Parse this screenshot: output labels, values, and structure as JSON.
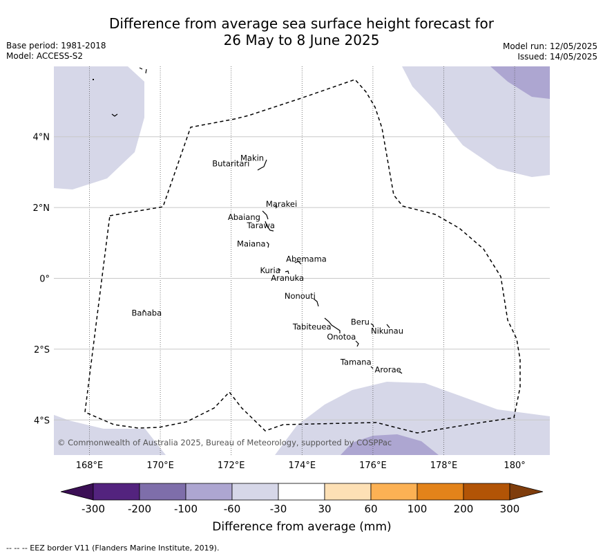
{
  "title": {
    "line1": "Difference from average sea surface height forecast for",
    "line2": "26 May to 8 June 2025"
  },
  "meta_left": {
    "base_period": "Base period: 1981-2018",
    "model": "Model: ACCESS-S2"
  },
  "meta_right": {
    "model_run": "Model run: 12/05/2025",
    "issued": "Issued: 14/05/2025"
  },
  "map": {
    "lon_range": [
      167,
      181
    ],
    "lat_range": [
      -5,
      6
    ],
    "lon_ticks": [
      {
        "value": 168,
        "label": "168°E"
      },
      {
        "value": 170,
        "label": "170°E"
      },
      {
        "value": 172,
        "label": "172°E"
      },
      {
        "value": 174,
        "label": "174°E"
      },
      {
        "value": 176,
        "label": "176°E"
      },
      {
        "value": 178,
        "label": "178°E"
      },
      {
        "value": 180,
        "label": "180°"
      }
    ],
    "lat_ticks": [
      {
        "value": 4,
        "label": "4°N"
      },
      {
        "value": 2,
        "label": "2°N"
      },
      {
        "value": 0,
        "label": "0°"
      },
      {
        "value": -2,
        "label": "2°S"
      },
      {
        "value": -4,
        "label": "4°S"
      }
    ],
    "copyright": "© Commonwealth of Australia 2025, Bureau of Meteorology, supported by COSPPac",
    "islands": [
      {
        "name": "Makin",
        "lon": 172.98,
        "lat": 3.28
      },
      {
        "name": "Butaritari",
        "lon": 172.79,
        "lat": 3.07
      },
      {
        "name": "Marakei",
        "lon": 173.33,
        "lat": 2.0
      },
      {
        "name": "Abaiang",
        "lon": 172.92,
        "lat": 1.83
      },
      {
        "name": "Tarawa",
        "lon": 173.03,
        "lat": 1.42
      },
      {
        "name": "Maiana",
        "lon": 173.02,
        "lat": 0.96
      },
      {
        "name": "Abemama",
        "lon": 173.86,
        "lat": 0.45
      },
      {
        "name": "Kuria",
        "lon": 173.42,
        "lat": 0.22
      },
      {
        "name": "Aranuka",
        "lon": 173.61,
        "lat": 0.17
      },
      {
        "name": "Nonouti",
        "lon": 174.42,
        "lat": -0.65
      },
      {
        "name": "Banaba",
        "lon": 169.54,
        "lat": -0.86
      },
      {
        "name": "Tabiteuea",
        "lon": 174.85,
        "lat": -1.33
      },
      {
        "name": "Beru",
        "lon": 176.0,
        "lat": -1.33
      },
      {
        "name": "Nikunau",
        "lon": 176.45,
        "lat": -1.37
      },
      {
        "name": "Onotoa",
        "lon": 175.58,
        "lat": -1.85
      },
      {
        "name": "Tamana",
        "lon": 175.98,
        "lat": -2.5
      },
      {
        "name": "Arorae",
        "lon": 176.83,
        "lat": -2.64
      }
    ]
  },
  "legend": {
    "ticks": [
      "-300",
      "-200",
      "-100",
      "-60",
      "-30",
      "30",
      "60",
      "100",
      "200",
      "300"
    ],
    "label": "Difference from average (mm)",
    "colors": [
      "#3b0f55",
      "#53237e",
      "#7e6eaa",
      "#ada6d1",
      "#d6d7e8",
      "#ffffff",
      "#fde0b5",
      "#fcb154",
      "#e3831a",
      "#b25406",
      "#7f3d0c"
    ]
  },
  "footer": "--  --  -- EEZ border V11 (Flanders Marine Institute, 2019)."
}
